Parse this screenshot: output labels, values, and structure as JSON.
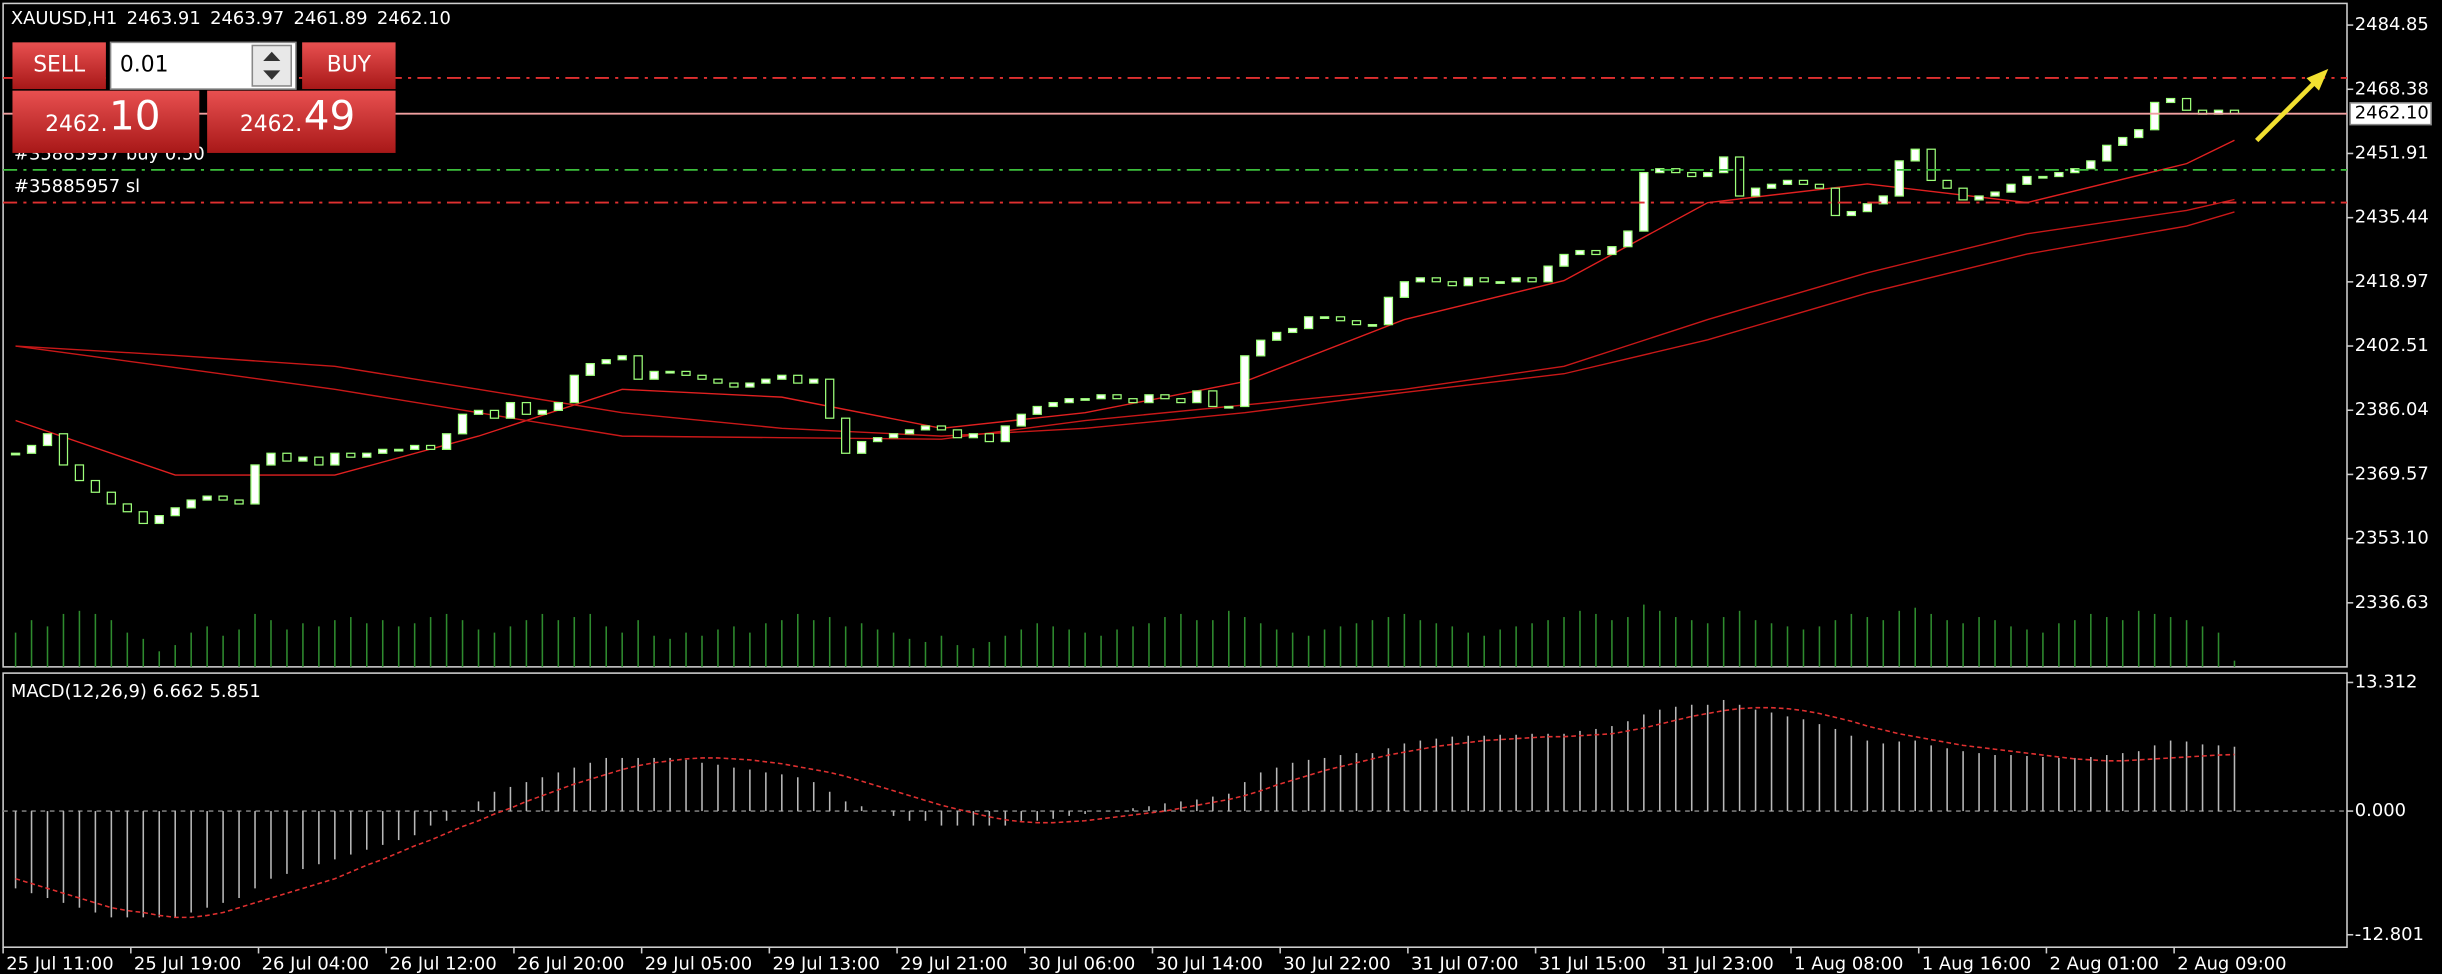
{
  "header": [
    "XAUUSD,H1",
    "2463.91",
    "2463.97",
    "2461.89",
    "2462.10"
  ],
  "trade_panel": {
    "sell": "SELL",
    "lot": "0.01",
    "buy": "BUY",
    "bid_main": "2462.",
    "bid_pips": "10",
    "ask_main": "2462.",
    "ask_pips": "49"
  },
  "chart_data": [
    {
      "type": "candlestick",
      "ylim": [
        2320.2,
        2490.4
      ],
      "yticks": [
        2484.85,
        2468.38,
        2451.91,
        2435.44,
        2418.97,
        2402.51,
        2386.04,
        2369.57,
        {
          "value": 2353.1,
          "label": "2353.10"
        },
        2336.63
      ],
      "up_color": "#ffffff",
      "down_color": "#000000",
      "outline_color": "#9dff7a",
      "close": [
        2375,
        2377,
        2380,
        2372,
        2368,
        2365,
        2362,
        2360,
        2357,
        2359,
        2361,
        2363,
        2364,
        2363,
        2362,
        2372,
        2375,
        2373,
        2374,
        2372,
        2375,
        2374,
        2375,
        2376,
        2376,
        2377,
        2376,
        2380,
        2385,
        2386,
        2384,
        2388,
        2385,
        2386,
        2388,
        2395,
        2398,
        2399,
        2400,
        2394,
        2396,
        2396,
        2395,
        2394,
        2393,
        2392,
        2393,
        2394,
        2395,
        2393,
        2394,
        2384,
        2375,
        2378,
        2379,
        2380,
        2381,
        2382,
        2381,
        2379,
        2380,
        2378,
        2382,
        2385,
        2387,
        2388,
        2389,
        2389,
        2390,
        2389,
        2388,
        2390,
        2389,
        2388,
        2391,
        2387,
        2387,
        2400,
        2404,
        2406,
        2407,
        2410,
        2410,
        2409,
        2408,
        2408,
        2415,
        2419,
        2420,
        2419,
        2418,
        2420,
        2419,
        2419,
        2420,
        2419,
        2423,
        2426,
        2427,
        2426,
        2428,
        2432,
        2447,
        2448,
        2447,
        2446,
        2447,
        2451,
        2441,
        2443,
        2444,
        2445,
        2444,
        2443,
        2436,
        2437,
        2439,
        2441,
        2450,
        2453,
        2445,
        2443,
        2440,
        2441,
        2442,
        2444,
        2446,
        2446,
        2447,
        2448,
        2450,
        2454,
        2456,
        2458,
        2465,
        2466,
        2463,
        2462,
        2463,
        2462.1
      ],
      "volume_color": "#2e8b2e",
      "volume": [
        22,
        30,
        26,
        34,
        36,
        34,
        30,
        22,
        18,
        10,
        14,
        22,
        26,
        20,
        24,
        34,
        30,
        24,
        28,
        26,
        30,
        32,
        28,
        30,
        26,
        28,
        32,
        34,
        30,
        24,
        22,
        26,
        30,
        34,
        30,
        32,
        34,
        26,
        22,
        30,
        20,
        18,
        22,
        20,
        24,
        26,
        22,
        28,
        30,
        34,
        30,
        32,
        26,
        28,
        24,
        22,
        18,
        16,
        20,
        14,
        12,
        16,
        20,
        24,
        28,
        26,
        24,
        22,
        20,
        24,
        26,
        28,
        32,
        34,
        30,
        30,
        36,
        32,
        28,
        24,
        22,
        20,
        24,
        26,
        28,
        30,
        32,
        34,
        30,
        28,
        26,
        22,
        20,
        24,
        26,
        28,
        30,
        32,
        36,
        34,
        30,
        32,
        40,
        36,
        32,
        30,
        28,
        32,
        36,
        30,
        28,
        26,
        24,
        26,
        30,
        34,
        32,
        30,
        36,
        38,
        34,
        30,
        28,
        32,
        30,
        26,
        24,
        22,
        28,
        30,
        34,
        32,
        30,
        36,
        34,
        32,
        30,
        26,
        22,
        4
      ],
      "moving_averages": [
        {
          "color": "#e02020",
          "x": [
            0,
            10,
            20,
            29,
            38,
            48,
            58,
            67,
            77,
            87,
            97,
            106,
            116,
            126,
            136,
            139
          ],
          "values": [
            2383.4,
            2369.4,
            2369.4,
            2379.4,
            2391.4,
            2389.4,
            2381.4,
            2385.4,
            2393.4,
            2409.3,
            2419.3,
            2439.3,
            2444.1,
            2439.3,
            2449.3,
            2455.3
          ]
        },
        {
          "color": "#c81818",
          "x": [
            0,
            10,
            20,
            29,
            38,
            48,
            58,
            67,
            77,
            87,
            97,
            106,
            116,
            126,
            136,
            139
          ],
          "values": [
            2402.5,
            2397,
            2391.4,
            2385.4,
            2379.4,
            2379,
            2378.6,
            2383.4,
            2387.4,
            2391.4,
            2397.3,
            2409.3,
            2421.3,
            2431.3,
            2437.3,
            2440.1
          ]
        },
        {
          "color": "#c81818",
          "x": [
            0,
            10,
            20,
            29,
            38,
            48,
            58,
            67,
            77,
            87,
            97,
            106,
            116,
            126,
            136,
            139
          ],
          "values": [
            2402.5,
            2400.1,
            2397.3,
            2391.4,
            2385.4,
            2381.4,
            2379.4,
            2381.4,
            2385.4,
            2390.6,
            2395.4,
            2404.1,
            2416.1,
            2426.1,
            2433.3,
            2436.9
          ]
        }
      ],
      "levels": [
        {
          "value": 2471.3,
          "color": "#e03030",
          "style": "dashdot"
        },
        {
          "value": 2462.1,
          "label": "2462.10",
          "color": "#f0a0a0",
          "style": "solid"
        },
        {
          "value": 2447.7,
          "text": "#35885957 buy 0.50",
          "color": "#3cbf3c",
          "style": "dashdot"
        },
        {
          "value": 2439.3,
          "text": "#35885957 sl",
          "color": "#e03030",
          "style": "dashdot"
        }
      ],
      "time_labels": [
        "25 Jul 11:00",
        "25 Jul 19:00",
        "26 Jul 04:00",
        "26 Jul 12:00",
        "26 Jul 20:00",
        "29 Jul 05:00",
        "29 Jul 13:00",
        "29 Jul 21:00",
        "30 Jul 06:00",
        "30 Jul 14:00",
        "30 Jul 22:00",
        "31 Jul 07:00",
        "31 Jul 15:00",
        "31 Jul 23:00",
        "1 Aug 08:00",
        "1 Aug 16:00",
        "2 Aug 01:00",
        "2 Aug 09:00"
      ]
    },
    {
      "type": "macd",
      "title": "MACD(12,26,9) 6.662 5.851",
      "ylim": [
        -14.09,
        14.28
      ],
      "yticks": [
        13.312,
        {
          "value": 0,
          "label": "0.000"
        },
        -12.801
      ],
      "histogram_color": "#b8b8b8",
      "signal_color": "#e03030",
      "histogram": [
        -8,
        -8.5,
        -9,
        -9.5,
        -10,
        -10.5,
        -11,
        -11,
        -11,
        -11,
        -11,
        -10.5,
        -10,
        -9.5,
        -9,
        -8,
        -7,
        -6.5,
        -6,
        -5.5,
        -5,
        -4.5,
        -4,
        -3.5,
        -3,
        -2.5,
        -1.5,
        -1,
        0,
        1,
        2,
        2.5,
        3,
        3.5,
        4,
        4.5,
        5,
        5.5,
        5.5,
        5.5,
        5.5,
        5.5,
        5.3,
        5,
        4.8,
        4.5,
        4.3,
        4,
        3.8,
        3.5,
        3,
        2,
        1,
        0.5,
        0,
        -0.5,
        -1,
        -1,
        -1.5,
        -1.5,
        -1.5,
        -1.5,
        -1.5,
        -1,
        -1,
        -0.8,
        -0.5,
        -0.3,
        0,
        0,
        0.3,
        0.5,
        0.8,
        1,
        1.2,
        1.5,
        1.8,
        3,
        4,
        4.5,
        5,
        5.3,
        5.5,
        5.8,
        6,
        6,
        6.5,
        7,
        7.3,
        7.5,
        7.7,
        7.8,
        7.8,
        7.9,
        7.9,
        8,
        8,
        8,
        8.3,
        8.5,
        8.8,
        9.3,
        10,
        10.5,
        10.8,
        11,
        11,
        11.5,
        11,
        10.5,
        10.2,
        9.8,
        9.5,
        9,
        8.5,
        7.8,
        7.3,
        7,
        7.2,
        7.3,
        6.8,
        6.5,
        6.2,
        6,
        5.8,
        5.8,
        5.7,
        5.6,
        5.5,
        5.5,
        5.6,
        5.8,
        6,
        6.2,
        6.8,
        7.3,
        7.2,
        6.9,
        6.8,
        6.662
      ],
      "signal": [
        -7,
        -7.5,
        -8,
        -8.5,
        -9,
        -9.5,
        -10,
        -10.3,
        -10.5,
        -10.8,
        -11,
        -11,
        -10.8,
        -10.5,
        -10,
        -9.5,
        -9,
        -8.5,
        -8,
        -7.5,
        -7,
        -6.3,
        -5.6,
        -5,
        -4.3,
        -3.6,
        -3,
        -2.3,
        -1.6,
        -1,
        -0.3,
        0.3,
        1,
        1.6,
        2.2,
        2.8,
        3.3,
        3.8,
        4.3,
        4.7,
        5,
        5.2,
        5.4,
        5.5,
        5.5,
        5.4,
        5.3,
        5.1,
        4.9,
        4.6,
        4.3,
        4,
        3.6,
        3.1,
        2.6,
        2.1,
        1.6,
        1.1,
        0.6,
        0.2,
        -0.2,
        -0.6,
        -0.9,
        -1.1,
        -1.2,
        -1.2,
        -1.1,
        -1,
        -0.8,
        -0.6,
        -0.4,
        -0.2,
        0,
        0.3,
        0.6,
        0.9,
        1.2,
        1.6,
        2.1,
        2.7,
        3.2,
        3.7,
        4.2,
        4.6,
        5,
        5.4,
        5.8,
        6.1,
        6.4,
        6.7,
        6.9,
        7.1,
        7.3,
        7.4,
        7.5,
        7.6,
        7.7,
        7.7,
        7.8,
        7.9,
        8,
        8.3,
        8.6,
        9,
        9.4,
        9.8,
        10.1,
        10.4,
        10.6,
        10.7,
        10.7,
        10.6,
        10.4,
        10.1,
        9.7,
        9.3,
        8.8,
        8.4,
        8,
        7.7,
        7.4,
        7.1,
        6.8,
        6.6,
        6.4,
        6.2,
        6,
        5.8,
        5.6,
        5.4,
        5.3,
        5.2,
        5.2,
        5.3,
        5.4,
        5.5,
        5.6,
        5.7,
        5.8,
        5.851
      ]
    }
  ]
}
